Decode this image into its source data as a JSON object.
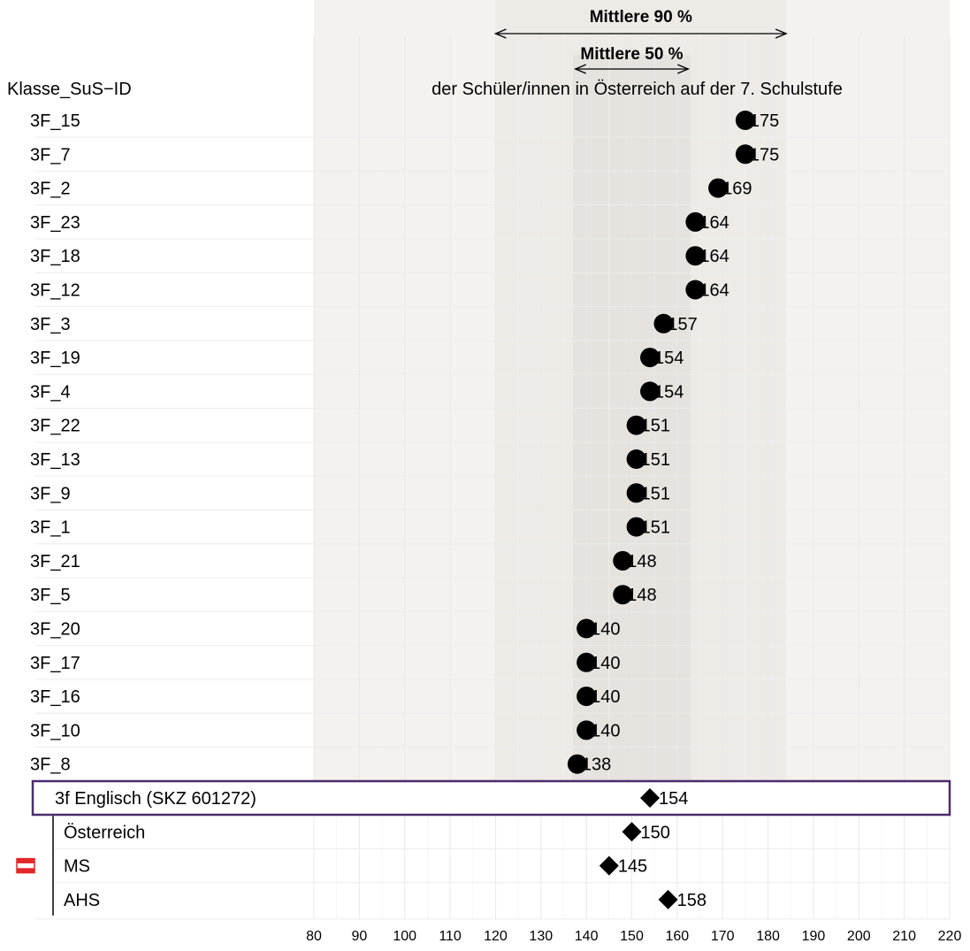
{
  "chart_data": {
    "type": "scatter",
    "orientation": "horizontal",
    "row_header": "Klasse_SuS−ID",
    "band_title": "der Schüler/innen in Österreich auf der 7. Schulstufe",
    "band_90_label": "Mittlere 90 %",
    "band_50_label": "Mittlere 50 %",
    "band_90": [
      120,
      184
    ],
    "band_50": [
      137,
      163
    ],
    "xlim": [
      80,
      220
    ],
    "x_ticks": [
      "80",
      "90",
      "100",
      "110",
      "120",
      "130",
      "140",
      "150",
      "160",
      "170",
      "180",
      "190",
      "200",
      "210",
      "220"
    ],
    "grid": true,
    "students": [
      {
        "label": "3F_15",
        "value": 175
      },
      {
        "label": "3F_7",
        "value": 175
      },
      {
        "label": "3F_2",
        "value": 169
      },
      {
        "label": "3F_23",
        "value": 164
      },
      {
        "label": "3F_18",
        "value": 164
      },
      {
        "label": "3F_12",
        "value": 164
      },
      {
        "label": "3F_3",
        "value": 157
      },
      {
        "label": "3F_19",
        "value": 154
      },
      {
        "label": "3F_4",
        "value": 154
      },
      {
        "label": "3F_22",
        "value": 151
      },
      {
        "label": "3F_13",
        "value": 151
      },
      {
        "label": "3F_9",
        "value": 151
      },
      {
        "label": "3F_1",
        "value": 151
      },
      {
        "label": "3F_21",
        "value": 148
      },
      {
        "label": "3F_5",
        "value": 148
      },
      {
        "label": "3F_20",
        "value": 140
      },
      {
        "label": "3F_17",
        "value": 140
      },
      {
        "label": "3F_16",
        "value": 140
      },
      {
        "label": "3F_10",
        "value": 140
      },
      {
        "label": "3F_8",
        "value": 138
      }
    ],
    "class_row": {
      "label": "3f Englisch (SKZ 601272)",
      "value": 154
    },
    "reference_rows": [
      {
        "label": "Österreich",
        "value": 150
      },
      {
        "label": "MS",
        "value": 145
      },
      {
        "label": "AHS",
        "value": 158
      }
    ],
    "colors": {
      "band_outer": "#f4f2ee",
      "band_90": "#eeebe7",
      "band_50": "#e6e2de",
      "class_box": "#4b2c6e",
      "flag_red": "#e3262a",
      "marker": "#000000"
    }
  }
}
